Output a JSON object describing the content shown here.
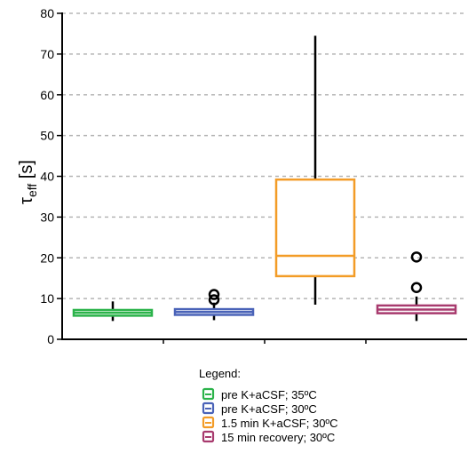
{
  "chart_data": {
    "type": "box",
    "ylabel_main": "τ",
    "ylabel_sub": "eff",
    "ylabel_unit": " [s]",
    "ylim": [
      0,
      80
    ],
    "yticks": [
      "0",
      "10",
      "20",
      "30",
      "40",
      "50",
      "60",
      "70",
      "80"
    ],
    "grid": "horizontal-dashed",
    "legend_title": "Legend:",
    "legend_position": "bottom-center",
    "series": [
      {
        "name": "pre K+aCSF; 35ºC",
        "color": "#2bb34a",
        "min": 4.5,
        "q1": 5.8,
        "median": 6.5,
        "q3": 7.2,
        "max": 9.3,
        "outliers": []
      },
      {
        "name": "pre K+aCSF; 30ºC",
        "color": "#4a63b8",
        "min": 4.7,
        "q1": 6.0,
        "median": 6.7,
        "q3": 7.4,
        "max": 9.0,
        "outliers": [
          9.7,
          11.0
        ]
      },
      {
        "name": "1.5 min K+aCSF; 30ºC",
        "color": "#f39c27",
        "min": 8.5,
        "q1": 15.5,
        "median": 20.5,
        "q3": 39.2,
        "max": 74.5,
        "outliers": []
      },
      {
        "name": "15 min recovery; 30ºC",
        "color": "#a83a6e",
        "min": 4.5,
        "q1": 6.4,
        "median": 7.3,
        "q3": 8.3,
        "max": 10.5,
        "outliers": [
          12.7,
          20.2
        ]
      }
    ]
  }
}
